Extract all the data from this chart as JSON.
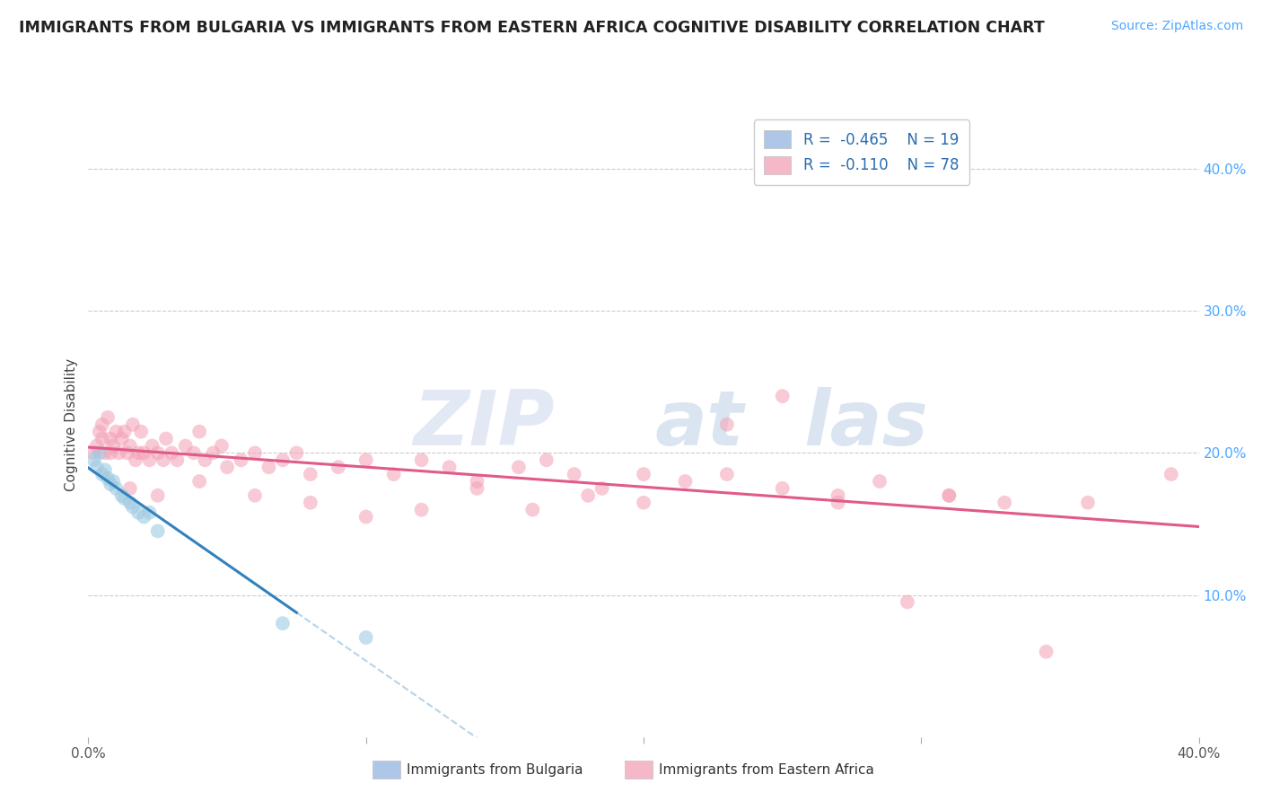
{
  "title": "IMMIGRANTS FROM BULGARIA VS IMMIGRANTS FROM EASTERN AFRICA COGNITIVE DISABILITY CORRELATION CHART",
  "source": "Source: ZipAtlas.com",
  "ylabel": "Cognitive Disability",
  "xlim": [
    0.0,
    0.4
  ],
  "ylim": [
    0.0,
    0.44
  ],
  "bulgaria_color": "#9ecae1",
  "eastern_africa_color": "#f4a0b5",
  "bulgaria_line_color": "#3182bd",
  "eastern_africa_line_color": "#e05a8a",
  "bulgaria_line_dash_color": "#9ecae1",
  "watermark_zip_color": "#c8d4e8",
  "watermark_atlas_color": "#a8c0e0",
  "background_color": "#ffffff",
  "grid_color": "#cccccc",
  "legend_blue_fill": "#aec6e8",
  "legend_pink_fill": "#f4b8c8",
  "legend_text_color": "#2b6cb0",
  "right_axis_color": "#4da6ff",
  "title_color": "#222222",
  "source_color": "#4da6ff",
  "bulgaria_scatter_x": [
    0.002,
    0.003,
    0.004,
    0.005,
    0.006,
    0.007,
    0.008,
    0.009,
    0.01,
    0.012,
    0.013,
    0.015,
    0.016,
    0.018,
    0.02,
    0.022,
    0.025,
    0.07,
    0.1
  ],
  "bulgaria_scatter_y": [
    0.195,
    0.19,
    0.2,
    0.185,
    0.188,
    0.182,
    0.178,
    0.18,
    0.175,
    0.17,
    0.168,
    0.165,
    0.162,
    0.158,
    0.155,
    0.158,
    0.145,
    0.08,
    0.07
  ],
  "eastern_africa_scatter_x": [
    0.002,
    0.003,
    0.004,
    0.005,
    0.006,
    0.007,
    0.008,
    0.009,
    0.01,
    0.011,
    0.012,
    0.013,
    0.014,
    0.015,
    0.016,
    0.017,
    0.018,
    0.019,
    0.02,
    0.022,
    0.023,
    0.025,
    0.027,
    0.028,
    0.03,
    0.032,
    0.035,
    0.038,
    0.04,
    0.042,
    0.045,
    0.048,
    0.05,
    0.055,
    0.06,
    0.065,
    0.07,
    0.075,
    0.08,
    0.09,
    0.1,
    0.11,
    0.12,
    0.13,
    0.14,
    0.155,
    0.165,
    0.175,
    0.185,
    0.2,
    0.215,
    0.23,
    0.25,
    0.27,
    0.285,
    0.295,
    0.31,
    0.33,
    0.345,
    0.36,
    0.31,
    0.27,
    0.25,
    0.23,
    0.2,
    0.18,
    0.16,
    0.14,
    0.12,
    0.1,
    0.08,
    0.06,
    0.04,
    0.025,
    0.015,
    0.008,
    0.005,
    0.39
  ],
  "eastern_africa_scatter_y": [
    0.2,
    0.205,
    0.215,
    0.22,
    0.2,
    0.225,
    0.21,
    0.205,
    0.215,
    0.2,
    0.21,
    0.215,
    0.2,
    0.205,
    0.22,
    0.195,
    0.2,
    0.215,
    0.2,
    0.195,
    0.205,
    0.2,
    0.195,
    0.21,
    0.2,
    0.195,
    0.205,
    0.2,
    0.215,
    0.195,
    0.2,
    0.205,
    0.19,
    0.195,
    0.2,
    0.19,
    0.195,
    0.2,
    0.185,
    0.19,
    0.195,
    0.185,
    0.195,
    0.19,
    0.18,
    0.19,
    0.195,
    0.185,
    0.175,
    0.185,
    0.18,
    0.185,
    0.175,
    0.17,
    0.18,
    0.095,
    0.17,
    0.165,
    0.06,
    0.165,
    0.17,
    0.165,
    0.24,
    0.22,
    0.165,
    0.17,
    0.16,
    0.175,
    0.16,
    0.155,
    0.165,
    0.17,
    0.18,
    0.17,
    0.175,
    0.2,
    0.21,
    0.185
  ]
}
